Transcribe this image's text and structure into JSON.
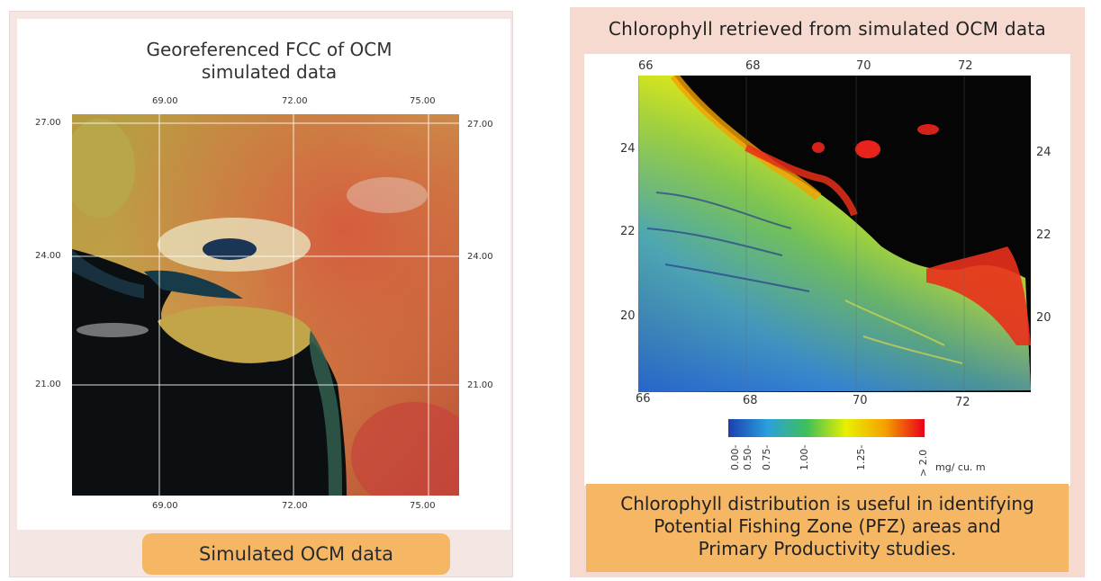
{
  "left": {
    "title_line1": "Georeferenced FCC of OCM",
    "title_line2": "simulated data",
    "top_ticks": [
      "69.00",
      "72.00",
      "75.00"
    ],
    "bottom_ticks": [
      "69.00",
      "72.00",
      "75.00"
    ],
    "left_ticks": [
      "27.00",
      "24.00",
      "21.00"
    ],
    "right_ticks": [
      "27.00",
      "24.00",
      "21.00"
    ],
    "caption": "Simulated OCM data"
  },
  "right": {
    "title": "Chlorophyll retrieved from simulated OCM data",
    "top_ticks": [
      "66",
      "68",
      "70",
      "72"
    ],
    "bottom_ticks": [
      "66",
      "68",
      "70",
      "72"
    ],
    "left_ticks": [
      "24",
      "22",
      "20"
    ],
    "right_ticks": [
      "24",
      "22",
      "20"
    ],
    "colorbar": {
      "labels": [
        "0.00-",
        "0.50-",
        "0.75-",
        "1.00-",
        "1.25-",
        "> 2.0"
      ],
      "unit": "mg/ cu. m",
      "colors": [
        "#1b3fae",
        "#2aa0dd",
        "#3fbf5a",
        "#e8f000",
        "#f5a000",
        "#e8001a"
      ]
    },
    "caption_line1": "Chlorophyll distribution is useful in identifying",
    "caption_line2": "Potential Fishing Zone (PFZ) areas and",
    "caption_line3": "Primary Productivity studies."
  }
}
